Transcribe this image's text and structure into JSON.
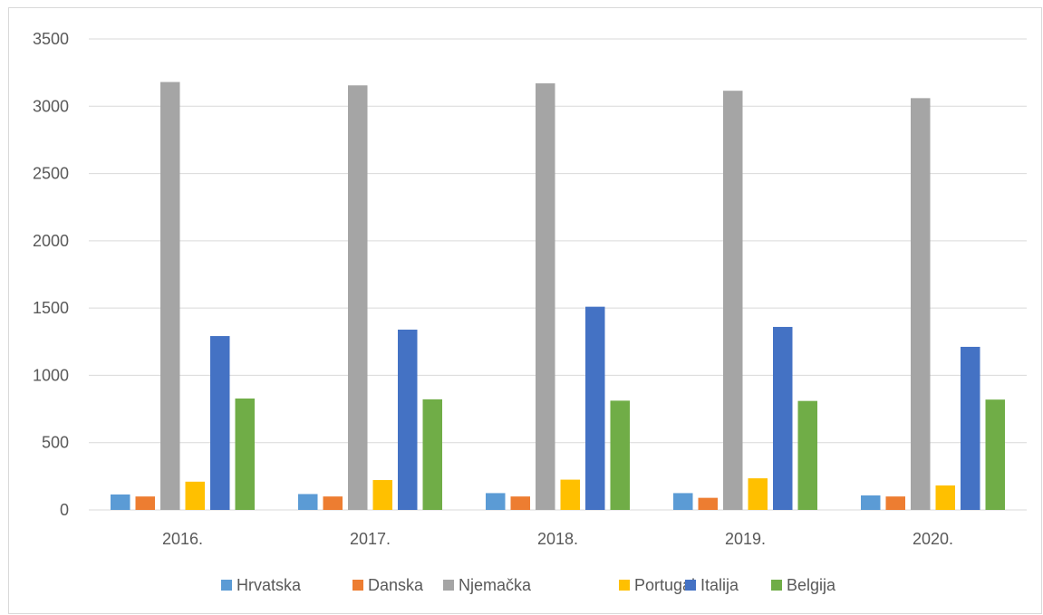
{
  "chart_data": {
    "type": "bar",
    "categories": [
      "2016.",
      "2017.",
      "2018.",
      "2019.",
      "2020."
    ],
    "series": [
      {
        "name": "Hrvatska",
        "color": "#5b9bd5",
        "values": [
          115,
          118,
          125,
          125,
          108
        ]
      },
      {
        "name": "Danska",
        "color": "#ed7d31",
        "values": [
          100,
          100,
          100,
          90,
          100
        ]
      },
      {
        "name": "Njemačka",
        "color": "#a5a5a5",
        "values": [
          3180,
          3155,
          3170,
          3115,
          3060
        ]
      },
      {
        "name": "Portugal",
        "color": "#ffc000",
        "values": [
          210,
          222,
          225,
          235,
          182
        ]
      },
      {
        "name": "Italija",
        "color": "#4472c4",
        "values": [
          1292,
          1340,
          1510,
          1360,
          1212
        ]
      },
      {
        "name": "Belgija",
        "color": "#70ad47",
        "values": [
          828,
          822,
          812,
          810,
          820
        ]
      }
    ],
    "y_ticks": [
      "0",
      "500",
      "1000",
      "1500",
      "2000",
      "2500",
      "3000",
      "3500"
    ],
    "ylim": [
      0,
      3500
    ],
    "grid": true,
    "legend": "bottom"
  }
}
